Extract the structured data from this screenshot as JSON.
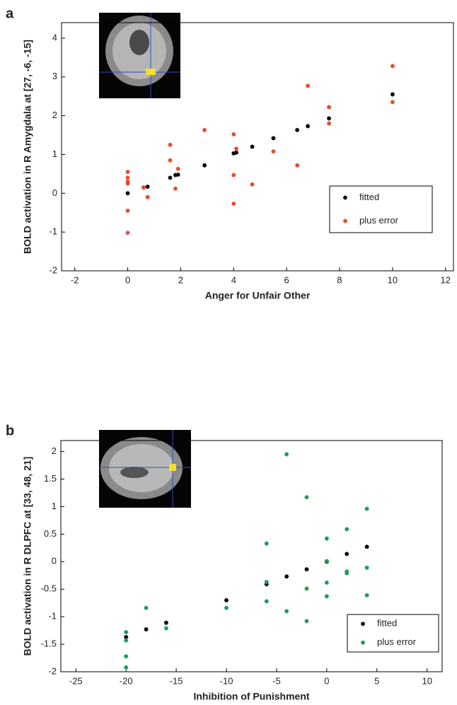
{
  "chart_data": [
    {
      "type": "scatter",
      "panel_label": "a",
      "x_label": "Anger for Unfair Other",
      "y_label": "BOLD activation in R Amygdala at [27, -6, -15]",
      "xlim": [
        -2.5,
        12.3
      ],
      "ylim": [
        -2,
        4.4
      ],
      "xticks": [
        -2,
        0,
        2,
        4,
        6,
        8,
        10,
        12
      ],
      "yticks": [
        -2,
        -1,
        0,
        1,
        2,
        3,
        4
      ],
      "legend": "lower right",
      "series": [
        {
          "name": "fitted",
          "color": "#000000",
          "x": [
            0,
            0.6,
            0.75,
            1.6,
            1.8,
            1.9,
            2.9,
            4.0,
            4.1,
            4.7,
            5.5,
            6.4,
            6.8,
            7.6,
            10
          ],
          "values": [
            0,
            0.15,
            0.17,
            0.4,
            0.47,
            0.48,
            0.72,
            1.03,
            1.05,
            1.2,
            1.42,
            1.63,
            1.73,
            1.93,
            2.55
          ]
        },
        {
          "name": "plus error",
          "color": "#e8492a",
          "x": [
            0,
            0,
            0,
            0,
            0,
            0,
            0.6,
            0.75,
            1.6,
            1.6,
            1.8,
            1.9,
            2.9,
            4.0,
            4.0,
            4.0,
            4.1,
            4.7,
            5.5,
            6.4,
            6.8,
            7.6,
            7.6,
            10,
            10
          ],
          "values": [
            0.55,
            0.4,
            0.3,
            0.25,
            -0.45,
            -1.02,
            0.15,
            -0.1,
            1.25,
            0.85,
            0.12,
            0.63,
            1.63,
            1.52,
            0.47,
            -0.27,
            1.15,
            0.23,
            1.08,
            0.72,
            2.77,
            2.22,
            1.8,
            3.28,
            2.35
          ]
        }
      ]
    },
    {
      "type": "scatter",
      "panel_label": "b",
      "x_label": "Inhibition of Punishment",
      "y_label": "BOLD activation in R DLPFC at [33, 48, 21]",
      "xlim": [
        -26.5,
        11.5
      ],
      "ylim": [
        -2,
        2.2
      ],
      "xticks": [
        -25,
        -20,
        -15,
        -10,
        -5,
        0,
        5,
        10
      ],
      "yticks": [
        -2,
        -1.5,
        -1,
        -0.5,
        0,
        0.5,
        1,
        1.5,
        2
      ],
      "legend": "lower right",
      "series": [
        {
          "name": "fitted",
          "color": "#000000",
          "x": [
            -20,
            -18,
            -16,
            -10,
            -6,
            -4,
            -2,
            0,
            2,
            4
          ],
          "values": [
            -1.37,
            -1.23,
            -1.11,
            -0.7,
            -0.41,
            -0.27,
            -0.14,
            0,
            0.14,
            0.27
          ]
        },
        {
          "name": "plus error",
          "color": "#1a9a5a",
          "x": [
            -20,
            -20,
            -20,
            -20,
            -18,
            -16,
            -10,
            -6,
            -6,
            -6,
            -4,
            -4,
            -2,
            -2,
            -2,
            0,
            0,
            0,
            0,
            2,
            2,
            2,
            4,
            4,
            4
          ],
          "values": [
            -1.28,
            -1.43,
            -1.72,
            -1.92,
            -0.84,
            -1.21,
            -0.84,
            0.33,
            -0.37,
            -0.72,
            1.95,
            -0.9,
            1.17,
            -0.49,
            -1.08,
            0.42,
            0.01,
            -0.38,
            -0.63,
            0.59,
            -0.18,
            -0.21,
            0.96,
            -0.11,
            -0.61
          ]
        }
      ]
    }
  ]
}
